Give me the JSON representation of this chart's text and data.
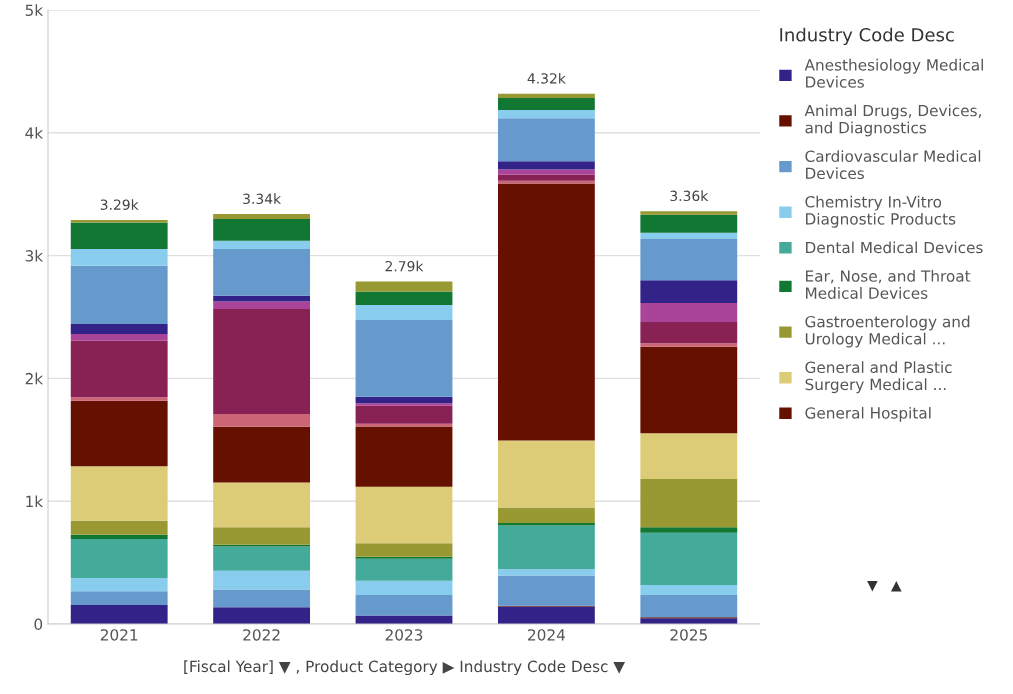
{
  "chart_data": {
    "type": "bar",
    "stacked": true,
    "legend_title": "Industry Code Desc",
    "xlabel": "[Fiscal Year] ▼ , Product Category ▶ Industry Code Desc ▼",
    "categories": [
      "2021",
      "2022",
      "2023",
      "2024",
      "2025"
    ],
    "series": [
      {
        "name": "Anesthesiology Medical\nDevices",
        "color": "#332288",
        "values": [
          155,
          136,
          70,
          142,
          47
        ]
      },
      {
        "name": "Animal Drugs, Devices,\nand Diagnostics",
        "color": "#661100",
        "values": [
          0,
          0,
          0,
          6,
          8
        ]
      },
      {
        "name": "Cardiovascular Medical\nDevices",
        "color": "#6699cc",
        "values": [
          111,
          144,
          166,
          247,
          181
        ]
      },
      {
        "name": "Chemistry In-Vitro\nDiagnostic Products",
        "color": "#88ccee",
        "values": [
          109,
          154,
          116,
          50,
          81
        ]
      },
      {
        "name": "Dental Medical Devices",
        "color": "#44aa99",
        "values": [
          317,
          198,
          180,
          358,
          427
        ]
      },
      {
        "name": "Ear, Nose, and Throat\nMedical Devices",
        "color": "#117733",
        "values": [
          35,
          14,
          15,
          20,
          44
        ]
      },
      {
        "name": "Gastroenterology and\nUrology Medical ...",
        "color": "#999933",
        "values": [
          114,
          141,
          110,
          125,
          393
        ]
      },
      {
        "name": "General and Plastic\nSurgery Medical ...",
        "color": "#ddcc77",
        "values": [
          443,
          366,
          460,
          547,
          372
        ]
      },
      {
        "name": "General Hospital",
        "color": "#661100",
        "values": [
          534,
          454,
          491,
          2093,
          704
        ]
      },
      {
        "color": "#cc6677",
        "values": [
          28,
          103,
          23,
          21,
          29
        ]
      },
      {
        "color": "#882255",
        "values": [
          461,
          855,
          146,
          49,
          174
        ]
      },
      {
        "color": "#aa4499",
        "values": [
          54,
          62,
          20,
          44,
          154
        ]
      },
      {
        "color": "#332288",
        "values": [
          82,
          46,
          53,
          67,
          186
        ]
      },
      {
        "color": "#6699cc",
        "values": [
          475,
          380,
          625,
          349,
          335
        ]
      },
      {
        "color": "#88ccee",
        "values": [
          135,
          68,
          122,
          67,
          52
        ]
      },
      {
        "color": "#117733",
        "values": [
          217,
          177,
          110,
          99,
          146
        ]
      },
      {
        "color": "#999933",
        "values": [
          20,
          40,
          82,
          34,
          29
        ]
      }
    ],
    "totals": [
      "3.29k",
      "3.34k",
      "2.79k",
      "4.32k",
      "3.36k"
    ],
    "ylim": [
      0,
      5000
    ],
    "yticks": [
      0,
      {
        "value": 1000,
        "label": "1k"
      },
      {
        "value": 2000,
        "label": "2k"
      },
      {
        "value": 3000,
        "label": "3k"
      },
      {
        "value": 4000,
        "label": "4k"
      },
      {
        "value": 5000,
        "label": "5k"
      }
    ],
    "grid": "y",
    "legend": "right",
    "annotations": [
      "▼   ▲"
    ]
  }
}
